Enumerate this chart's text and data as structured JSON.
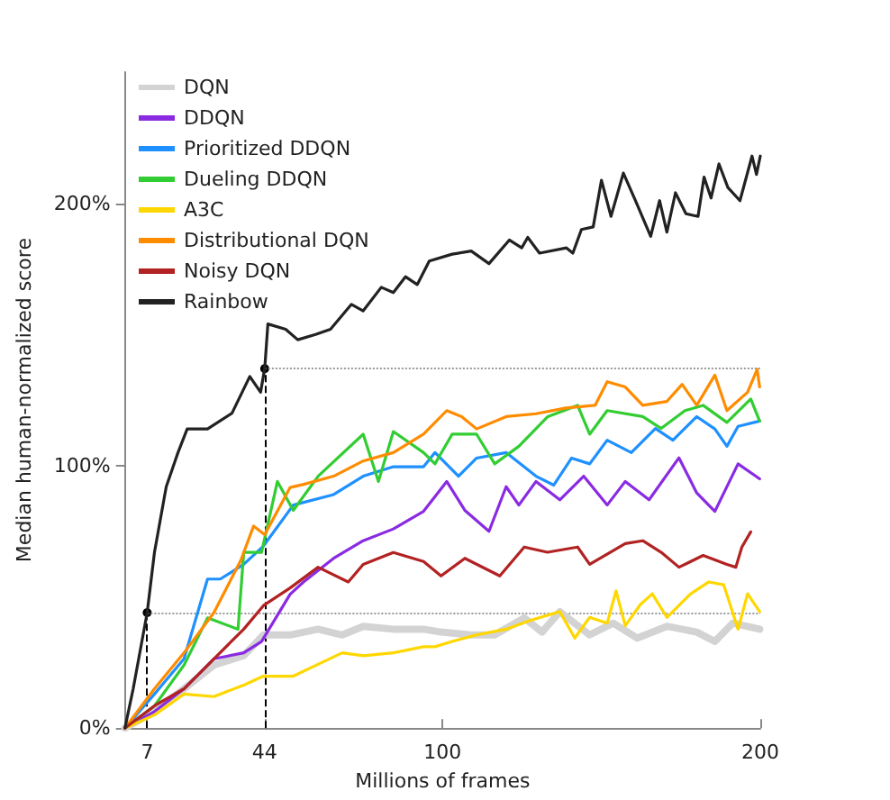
{
  "chart_data": {
    "type": "line",
    "xlabel": "Millions of frames",
    "ylabel": "Median human-normalized score",
    "xlim": [
      0,
      200
    ],
    "xticks": [
      7,
      44,
      100,
      200
    ],
    "ylim": [
      0,
      250
    ],
    "yticks": [
      {
        "value": 0,
        "label": "0%"
      },
      {
        "value": 100,
        "label": "100%"
      },
      {
        "value": 200,
        "label": "200%"
      }
    ],
    "grid": false,
    "legend": "top left",
    "marker": "none",
    "line_style": "solid",
    "ref_lines": [
      {
        "axis": "x",
        "value": 7,
        "color": "#000000",
        "line_style": "dashed"
      },
      {
        "axis": "x",
        "value": 44,
        "color": "#000000",
        "line_style": "dashed"
      },
      {
        "axis": "y",
        "value": 44,
        "color": "#999999",
        "line_style": "dotted"
      },
      {
        "axis": "y",
        "value": 137,
        "color": "#999999",
        "line_style": "dotted"
      }
    ],
    "series": [
      {
        "name": "DQN",
        "color": "#d3d3d3",
        "x": [
          0,
          9.3,
          18.6,
          28,
          37.4,
          43.6,
          52,
          60.8,
          68.4,
          75,
          84.5,
          94,
          99.5,
          108.8,
          116.4,
          125.7,
          131.3,
          136.9,
          146.3,
          153.7,
          161.3,
          170.6,
          180,
          185.7,
          191.3,
          199.8
        ],
        "values": [
          0,
          6.3,
          15,
          24,
          27.6,
          35.5,
          35.5,
          37.7,
          35.5,
          38.8,
          37.7,
          37.7,
          36.6,
          35.5,
          35.5,
          42,
          36.6,
          44.4,
          35.5,
          40,
          34.3,
          38.8,
          36.6,
          33,
          40,
          37.7
        ]
      },
      {
        "name": "DDQN",
        "color": "#8a2be2",
        "x": [
          0,
          9.3,
          18.6,
          28,
          37.4,
          43,
          52,
          56.2,
          65.7,
          75,
          84.5,
          94,
          101.3,
          107,
          114.6,
          120,
          124,
          129.4,
          136.9,
          144.4,
          151.8,
          157.5,
          165,
          174.4,
          180,
          185.7,
          193,
          199.8
        ],
        "values": [
          0,
          6.3,
          15,
          26.4,
          28.7,
          33,
          51,
          55.7,
          64.7,
          71.4,
          75.9,
          82.6,
          94,
          83,
          75,
          92,
          85,
          94,
          87,
          96,
          85,
          94,
          87,
          103,
          89.6,
          82.6,
          100.7,
          95
        ]
      },
      {
        "name": "Prioritized DDQN",
        "color": "#1e90ff",
        "x": [
          0,
          9.3,
          18.6,
          26,
          30,
          37.4,
          43.6,
          53,
          65.7,
          75,
          84.5,
          94,
          97.6,
          105,
          110.7,
          120,
          129.4,
          135,
          140.6,
          146.3,
          151.8,
          159.4,
          167,
          172.5,
          180,
          185.7,
          189.5,
          193,
          199.8
        ],
        "values": [
          0,
          13,
          26.4,
          56.8,
          56.8,
          62.4,
          69.4,
          85,
          89,
          96,
          99.6,
          99.6,
          105,
          96,
          102.9,
          105,
          96,
          92.6,
          102.9,
          100.7,
          109.7,
          105,
          114.2,
          109.7,
          118.7,
          114,
          107.4,
          115,
          117
        ]
      },
      {
        "name": "Dueling DDQN",
        "color": "#32cd32",
        "x": [
          0,
          9.3,
          18.6,
          26,
          35.6,
          37.4,
          43,
          48,
          53,
          60.8,
          75,
          79.8,
          84.5,
          94,
          97.6,
          103,
          110.7,
          116.4,
          124,
          133.1,
          142.5,
          146.3,
          151.8,
          163,
          168.8,
          176.3,
          182,
          189.5,
          197,
          199.8
        ],
        "values": [
          0,
          8.5,
          24,
          42,
          37.7,
          67,
          67,
          94,
          83,
          96,
          112,
          94,
          113,
          105,
          100.7,
          112,
          112,
          100.7,
          107.4,
          118.7,
          123,
          112,
          121,
          118.7,
          114.2,
          121,
          123,
          116.5,
          125.4,
          117
        ]
      },
      {
        "name": "A3C",
        "color": "#ffd700",
        "x": [
          0,
          9.3,
          18.6,
          28,
          37.4,
          43.6,
          53,
          60.8,
          68.4,
          75,
          84.5,
          94,
          97.6,
          103,
          110.7,
          120,
          127.5,
          136.9,
          141.6,
          146.3,
          151.8,
          154.6,
          157.5,
          162.2,
          166,
          170.6,
          178.1,
          183.8,
          188.5,
          193,
          196,
          199.8
        ],
        "values": [
          0,
          5,
          13,
          12,
          16.4,
          19.8,
          19.8,
          24.3,
          28.7,
          27.6,
          28.7,
          31,
          31,
          33,
          35.5,
          37.7,
          41,
          44.4,
          34.3,
          42.2,
          40,
          52.3,
          39,
          47,
          51.2,
          42.2,
          51.2,
          55.7,
          54.6,
          37.7,
          51.2,
          44.4
        ]
      },
      {
        "name": "Distributional DQN",
        "color": "#ff8c00",
        "x": [
          0,
          9.3,
          18.6,
          28,
          36.5,
          40.5,
          44,
          52,
          56,
          65.7,
          75,
          84.5,
          94,
          101.3,
          106,
          110.7,
          120,
          129.4,
          138.8,
          148,
          151.8,
          157.5,
          163,
          170.6,
          175.4,
          180,
          185.7,
          189.5,
          196,
          199,
          199.8
        ],
        "values": [
          0,
          15,
          28.7,
          44,
          64,
          77,
          73.7,
          91.7,
          92.8,
          96,
          101.8,
          105,
          112,
          121,
          118.7,
          114,
          118.7,
          119.8,
          122,
          123,
          132,
          130,
          123,
          124.5,
          131,
          123,
          134.5,
          121,
          128,
          136.7,
          130
        ]
      },
      {
        "name": "Noisy DQN",
        "color": "#b22222",
        "x": [
          0,
          9.3,
          18.6,
          28,
          37.4,
          43.6,
          52,
          60.8,
          70.3,
          75,
          84.5,
          94,
          99.5,
          107,
          118,
          125.7,
          133,
          142.5,
          146.3,
          157.5,
          163,
          168.8,
          174.4,
          182,
          189.5,
          192.3,
          194.2,
          197
        ],
        "values": [
          0,
          8.5,
          15,
          26.4,
          37.7,
          46.7,
          53.4,
          61.3,
          55.7,
          62.4,
          66.9,
          63.5,
          58,
          64.7,
          58,
          69,
          67,
          69,
          62.4,
          70.3,
          71.4,
          67,
          61.3,
          65.8,
          62.4,
          61.3,
          69,
          74.8
        ]
      },
      {
        "name": "Rainbow",
        "color": "#222222",
        "x": [
          0,
          2.6,
          7,
          9.3,
          13,
          16.7,
          19.6,
          26,
          33.7,
          39.3,
          42.7,
          44,
          45,
          50.6,
          54.4,
          60,
          64.7,
          71.3,
          75,
          80.7,
          84.5,
          88.3,
          92,
          95.8,
          103,
          109,
          114.6,
          121,
          124.9,
          126.8,
          130.5,
          139,
          141,
          143.7,
          147.4,
          150,
          153,
          156.9,
          160.7,
          165.5,
          168.3,
          170.6,
          173.3,
          176.6,
          180.4,
          182.3,
          184.5,
          187,
          189.8,
          193.6,
          197.4,
          198.8,
          200
        ],
        "values": [
          0,
          15,
          44,
          67,
          92,
          105,
          114,
          114,
          120,
          134,
          128,
          137,
          154,
          152,
          148,
          150,
          152,
          161.5,
          159,
          168,
          166,
          172,
          169,
          178,
          180.6,
          181.8,
          177,
          186,
          183,
          187,
          181,
          183,
          181,
          190,
          191,
          208.8,
          195,
          211.5,
          201,
          187.4,
          201,
          189,
          204,
          196,
          195,
          210,
          202,
          215,
          206,
          201,
          218,
          211,
          218
        ]
      }
    ]
  }
}
